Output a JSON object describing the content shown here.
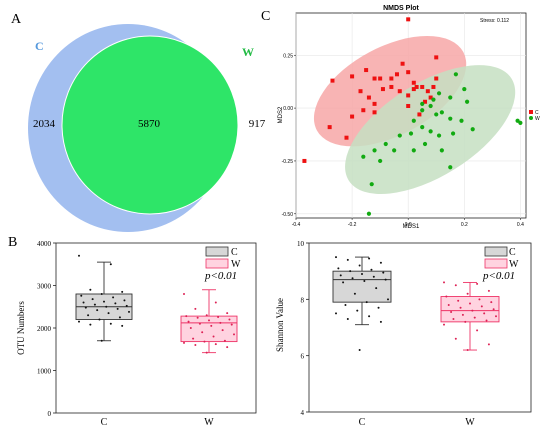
{
  "panels": {
    "a": "A",
    "b": "B",
    "c": "C"
  },
  "chart_data": [
    {
      "type": "venn",
      "sets": [
        {
          "name": "C",
          "color": "#a3bff0"
        },
        {
          "name": "W",
          "color": "#2ee568"
        }
      ],
      "values": {
        "C_only": "2034",
        "shared": "5870",
        "W_only": "917"
      }
    },
    {
      "type": "scatter",
      "title": "NMDS Plot",
      "xlabel": "MDS1",
      "ylabel": "MDS2",
      "stress": "Stress: 0.112",
      "xlim": [
        -0.4,
        0.42
      ],
      "ylim": [
        -0.52,
        0.45
      ],
      "xticks": [
        "-0.4",
        "-0.2",
        "0.0",
        "0.2",
        "0.4"
      ],
      "yticks": [
        "0.25",
        "0.00",
        "-0.25",
        "-0.50"
      ],
      "legend_position": "right",
      "series": [
        {
          "name": "C",
          "marker": "square",
          "color": "#ee1111",
          "ellipse_color": "#f7a7a7",
          "points": [
            [
              0.0,
              0.42
            ],
            [
              -0.27,
              0.13
            ],
            [
              -0.37,
              -0.25
            ],
            [
              -0.28,
              -0.09
            ],
            [
              -0.2,
              0.15
            ],
            [
              -0.15,
              0.18
            ],
            [
              -0.12,
              0.14
            ],
            [
              -0.1,
              0.14
            ],
            [
              -0.06,
              0.14
            ],
            [
              -0.04,
              0.16
            ],
            [
              -0.02,
              0.21
            ],
            [
              0.0,
              0.17
            ],
            [
              0.02,
              0.12
            ],
            [
              0.03,
              0.1
            ],
            [
              0.05,
              0.1
            ],
            [
              0.07,
              0.08
            ],
            [
              0.09,
              0.1
            ],
            [
              0.1,
              0.14
            ],
            [
              0.1,
              0.24
            ],
            [
              -0.17,
              0.08
            ],
            [
              -0.14,
              0.05
            ],
            [
              -0.12,
              0.02
            ],
            [
              -0.09,
              0.09
            ],
            [
              -0.06,
              0.1
            ],
            [
              -0.03,
              0.08
            ],
            [
              0.0,
              0.06
            ],
            [
              0.02,
              0.09
            ],
            [
              -0.2,
              -0.04
            ],
            [
              -0.16,
              -0.01
            ],
            [
              -0.12,
              -0.02
            ],
            [
              -0.22,
              -0.14
            ],
            [
              0.0,
              0.01
            ],
            [
              0.06,
              0.03
            ],
            [
              0.04,
              -0.03
            ],
            [
              0.08,
              0.05
            ]
          ]
        },
        {
          "name": "W",
          "marker": "circle",
          "color": "#11aa11",
          "ellipse_color": "#c5dfc2",
          "points": [
            [
              0.17,
              0.16
            ],
            [
              0.2,
              0.09
            ],
            [
              0.21,
              0.03
            ],
            [
              0.15,
              0.05
            ],
            [
              0.11,
              0.07
            ],
            [
              0.09,
              0.04
            ],
            [
              0.08,
              0.01
            ],
            [
              0.05,
              0.02
            ],
            [
              0.05,
              -0.01
            ],
            [
              0.12,
              -0.02
            ],
            [
              0.15,
              -0.05
            ],
            [
              0.19,
              -0.06
            ],
            [
              0.23,
              -0.1
            ],
            [
              0.16,
              -0.12
            ],
            [
              0.11,
              -0.13
            ],
            [
              0.08,
              -0.11
            ],
            [
              0.05,
              -0.09
            ],
            [
              0.02,
              -0.06
            ],
            [
              0.01,
              -0.12
            ],
            [
              0.06,
              -0.17
            ],
            [
              -0.03,
              -0.13
            ],
            [
              -0.05,
              -0.2
            ],
            [
              -0.08,
              -0.17
            ],
            [
              -0.12,
              -0.2
            ],
            [
              -0.16,
              -0.23
            ],
            [
              -0.1,
              -0.25
            ],
            [
              0.02,
              -0.2
            ],
            [
              0.12,
              -0.2
            ],
            [
              0.15,
              -0.28
            ],
            [
              0.39,
              -0.06
            ],
            [
              0.4,
              -0.07
            ],
            [
              -0.14,
              -0.5
            ],
            [
              -0.13,
              -0.36
            ],
            [
              0.1,
              -0.03
            ]
          ]
        }
      ]
    },
    {
      "type": "box",
      "ylabel": "OTU Numbers",
      "categories": [
        "C",
        "W"
      ],
      "ylim": [
        0,
        4000
      ],
      "yticks": [
        "0",
        "1000",
        "2000",
        "3000",
        "4000"
      ],
      "annotation": "p<0.01",
      "legend": [
        {
          "name": "C",
          "color": "#d7d7d7"
        },
        {
          "name": "W",
          "color": "#ffd3e0"
        }
      ],
      "boxes": [
        {
          "name": "C",
          "whisker_low": 1700,
          "q1": 2200,
          "median": 2500,
          "q3": 2800,
          "whisker_high": 3550,
          "fill": "#d7d7d7",
          "stroke": "#333333",
          "points": [
            3700,
            3500,
            2900,
            2850,
            2800,
            2760,
            2720,
            2680,
            2650,
            2620,
            2600,
            2580,
            2550,
            2520,
            2500,
            2480,
            2450,
            2420,
            2380,
            2350,
            2300,
            2250,
            2200,
            2150,
            2100,
            2080,
            2050,
            1700
          ]
        },
        {
          "name": "W",
          "whisker_low": 1420,
          "q1": 1680,
          "median": 2120,
          "q3": 2280,
          "whisker_high": 2900,
          "fill": "#ffd3e0",
          "stroke": "#ee3366",
          "points": [
            2800,
            2600,
            2450,
            2350,
            2300,
            2280,
            2260,
            2240,
            2200,
            2180,
            2150,
            2120,
            2100,
            2080,
            2050,
            2000,
            1950,
            1900,
            1850,
            1800,
            1750,
            1700,
            1680,
            1650,
            1620,
            1600,
            1550,
            1420
          ]
        }
      ]
    },
    {
      "type": "box",
      "ylabel": "Shannon Value",
      "categories": [
        "C",
        "W"
      ],
      "ylim": [
        4,
        10
      ],
      "yticks": [
        "4",
        "6",
        "8",
        "10"
      ],
      "annotation": "p<0.01",
      "legend": [
        {
          "name": "C",
          "color": "#d7d7d7"
        },
        {
          "name": "W",
          "color": "#ffd3e0"
        }
      ],
      "boxes": [
        {
          "name": "C",
          "whisker_low": 7.1,
          "q1": 7.9,
          "median": 8.7,
          "q3": 9.0,
          "whisker_high": 9.5,
          "fill": "#d7d7d7",
          "stroke": "#333333",
          "points": [
            9.5,
            9.45,
            9.4,
            9.3,
            9.2,
            9.1,
            9.05,
            9.0,
            8.95,
            8.9,
            8.85,
            8.8,
            8.75,
            8.7,
            8.65,
            8.6,
            8.4,
            8.2,
            8.0,
            7.9,
            7.8,
            7.7,
            7.6,
            7.5,
            7.4,
            7.3,
            7.2,
            6.2
          ]
        },
        {
          "name": "W",
          "whisker_low": 6.2,
          "q1": 7.2,
          "median": 7.6,
          "q3": 8.1,
          "whisker_high": 8.6,
          "fill": "#ffd3e0",
          "stroke": "#ee3366",
          "points": [
            8.6,
            8.55,
            8.5,
            8.3,
            8.2,
            8.1,
            8.0,
            7.95,
            7.9,
            7.85,
            7.8,
            7.75,
            7.7,
            7.65,
            7.6,
            7.55,
            7.5,
            7.45,
            7.4,
            7.35,
            7.3,
            7.25,
            7.2,
            7.1,
            6.9,
            6.6,
            6.4,
            6.2
          ]
        }
      ]
    }
  ]
}
